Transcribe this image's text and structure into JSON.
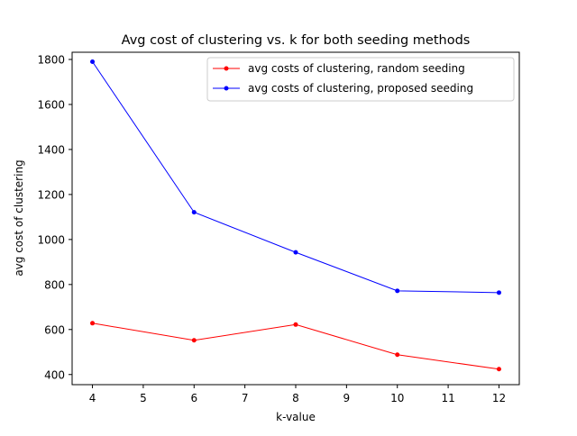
{
  "chart_data": {
    "type": "line",
    "title": "Avg cost of clustering vs. k for both seeding methods",
    "xlabel": "k-value",
    "ylabel": "avg cost of clustering",
    "x": [
      4,
      6,
      8,
      10,
      12
    ],
    "xlim": [
      3.6,
      12.4
    ],
    "ylim": [
      355,
      1832
    ],
    "xticks": [
      4,
      5,
      6,
      7,
      8,
      9,
      10,
      11,
      12
    ],
    "yticks": [
      400,
      600,
      800,
      1000,
      1200,
      1400,
      1600,
      1800
    ],
    "grid": false,
    "legend_position": "top-right",
    "series": [
      {
        "name": "avg costs of clustering, random seeding",
        "color": "#ff0000",
        "values": [
          628,
          552,
          622,
          488,
          424
        ]
      },
      {
        "name": "avg costs of clustering, proposed seeding",
        "color": "#0000ff",
        "values": [
          1790,
          1121,
          943,
          772,
          764
        ]
      }
    ]
  }
}
